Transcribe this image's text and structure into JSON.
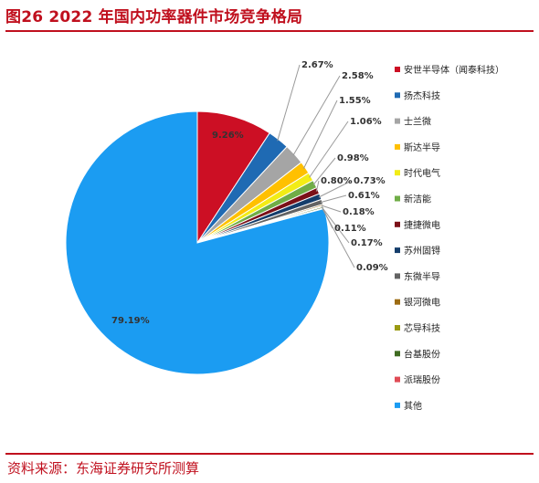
{
  "header": {
    "title": "图26  2022 年国内功率器件市场竞争格局"
  },
  "footer": {
    "source": "资料来源：东海证券研究所测算"
  },
  "chart_data": {
    "type": "pie",
    "title": "2022 年国内功率器件市场竞争格局",
    "legend_position": "right",
    "slices": [
      {
        "name": "安世半导体（闻泰科技）",
        "label": "9.26%",
        "value": 9.26,
        "color": "#cc0f24"
      },
      {
        "name": "扬杰科技",
        "label": "2.67%",
        "value": 2.67,
        "color": "#1f6ab3"
      },
      {
        "name": "士兰微",
        "label": "2.58%",
        "value": 2.58,
        "color": "#a5a5a5"
      },
      {
        "name": "斯达半导",
        "label": "1.55%",
        "value": 1.55,
        "color": "#ffc000"
      },
      {
        "name": "时代电气",
        "label": "1.06%",
        "value": 1.06,
        "color": "#f2ec16"
      },
      {
        "name": "新洁能",
        "label": "0.98%",
        "value": 0.98,
        "color": "#70ad47"
      },
      {
        "name": "捷捷微电",
        "label": "0.80%",
        "value": 0.8,
        "color": "#7b1018"
      },
      {
        "name": "苏州固锝",
        "label": "0.73%",
        "value": 0.73,
        "color": "#143d6b"
      },
      {
        "name": "东微半导",
        "label": "0.61%",
        "value": 0.61,
        "color": "#636363"
      },
      {
        "name": "银河微电",
        "label": "0.18%",
        "value": 0.18,
        "color": "#9c6b12"
      },
      {
        "name": "芯导科技",
        "label": "0.11%",
        "value": 0.11,
        "color": "#9a9a12"
      },
      {
        "name": "台基股份",
        "label": "0.17%",
        "value": 0.17,
        "color": "#3f6b21"
      },
      {
        "name": "派瑞股份",
        "label": "0.09%",
        "value": 0.09,
        "color": "#e04b55"
      },
      {
        "name": "其他",
        "label": "79.19%",
        "value": 79.19,
        "color": "#1b9cf2"
      }
    ]
  }
}
